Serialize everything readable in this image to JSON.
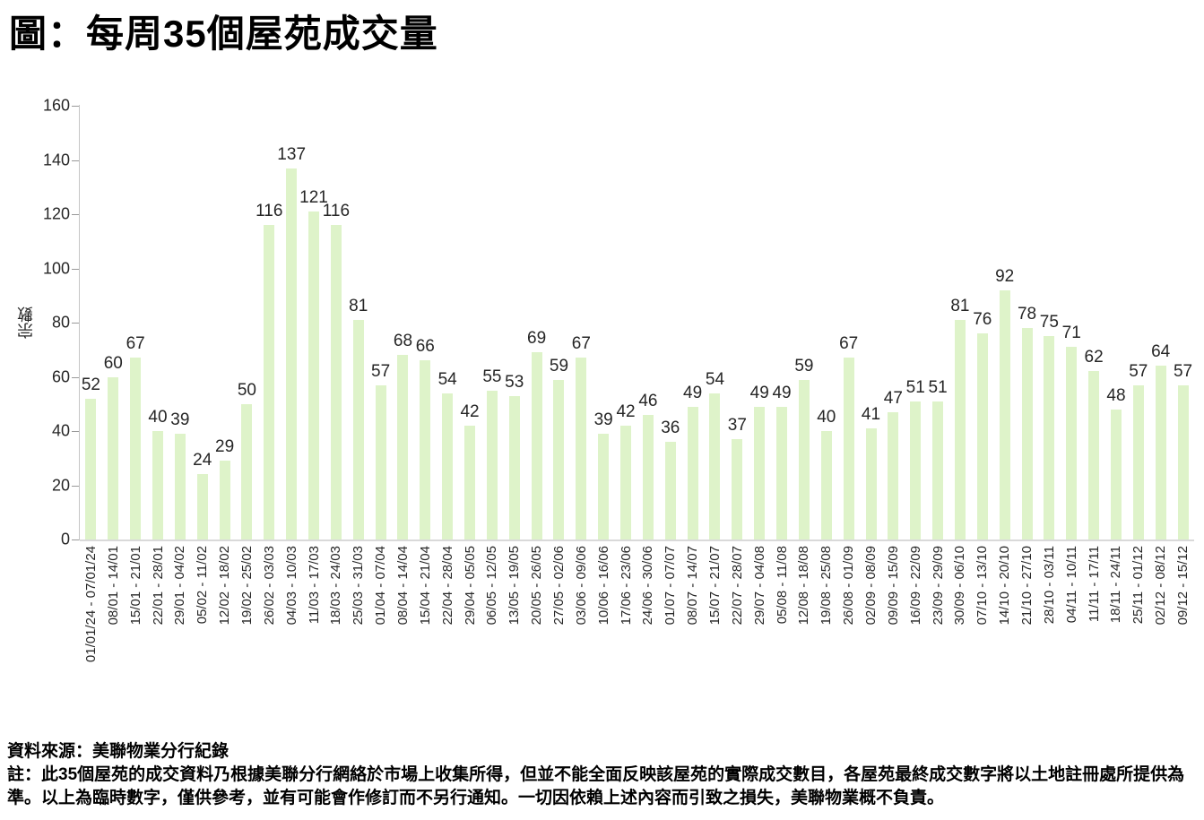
{
  "page_title": "圖：每周35個屋苑成交量",
  "chart_data": {
    "type": "bar",
    "title": "圖：每周35個屋苑成交量",
    "xlabel": "",
    "ylabel": "宗數",
    "ylim": [
      0,
      160
    ],
    "ytick_step": 20,
    "grid": false,
    "legend": "none",
    "bar_color": "#def3c9",
    "categories": [
      "01/01/24 - 07/01/24",
      "08/01 - 14/01",
      "15/01 - 21/01",
      "22/01 - 28/01",
      "29/01 - 04/02",
      "05/02 - 11/02",
      "12/02 - 18/02",
      "19/02 - 25/02",
      "26/02 - 03/03",
      "04/03 - 10/03",
      "11/03 - 17/03",
      "18/03 - 24/03",
      "25/03 - 31/03",
      "01/04 - 07/04",
      "08/04 - 14/04",
      "15/04 - 21/04",
      "22/04 - 28/04",
      "29/04 - 05/05",
      "06/05 - 12/05",
      "13/05 - 19/05",
      "20/05 - 26/05",
      "27/05 - 02/06",
      "03/06 - 09/06",
      "10/06 - 16/06",
      "17/06 - 23/06",
      "24/06 - 30/06",
      "01/07 - 07/07",
      "08/07 - 14/07",
      "15/07 - 21/07",
      "22/07 - 28/07",
      "29/07 - 04/08",
      "05/08 - 11/08",
      "12/08 - 18/08",
      "19/08 - 25/08",
      "26/08 - 01/09",
      "02/09 - 08/09",
      "09/09 - 15/09",
      "16/09 - 22/09",
      "23/09 - 29/09",
      "30/09 - 06/10",
      "07/10 - 13/10",
      "14/10 - 20/10",
      "21/10 - 27/10",
      "28/10 - 03/11",
      "04/11 - 10/11",
      "11/11 - 17/11",
      "18/11 - 24/11",
      "25/11 - 01/12",
      "02/12 - 08/12",
      "09/12 - 15/12"
    ],
    "values": [
      52,
      60,
      67,
      40,
      39,
      24,
      29,
      50,
      116,
      137,
      121,
      116,
      81,
      57,
      68,
      66,
      54,
      42,
      55,
      53,
      69,
      59,
      67,
      39,
      42,
      46,
      36,
      49,
      54,
      37,
      49,
      49,
      59,
      40,
      67,
      41,
      47,
      51,
      51,
      81,
      76,
      92,
      78,
      75,
      71,
      62,
      48,
      57,
      64,
      57
    ]
  },
  "footer": {
    "source": "資料來源：美聯物業分行紀錄",
    "note": "註：此35個屋苑的成交資料乃根據美聯分行網絡於市場上收集所得，但並不能全面反映該屋苑的實際成交數目，各屋苑最終成交數字將以土地註冊處所提供為準。以上為臨時數字，僅供參考，並有可能會作修訂而不另行通知。一切因依賴上述內容而引致之損失，美聯物業概不負責。"
  }
}
